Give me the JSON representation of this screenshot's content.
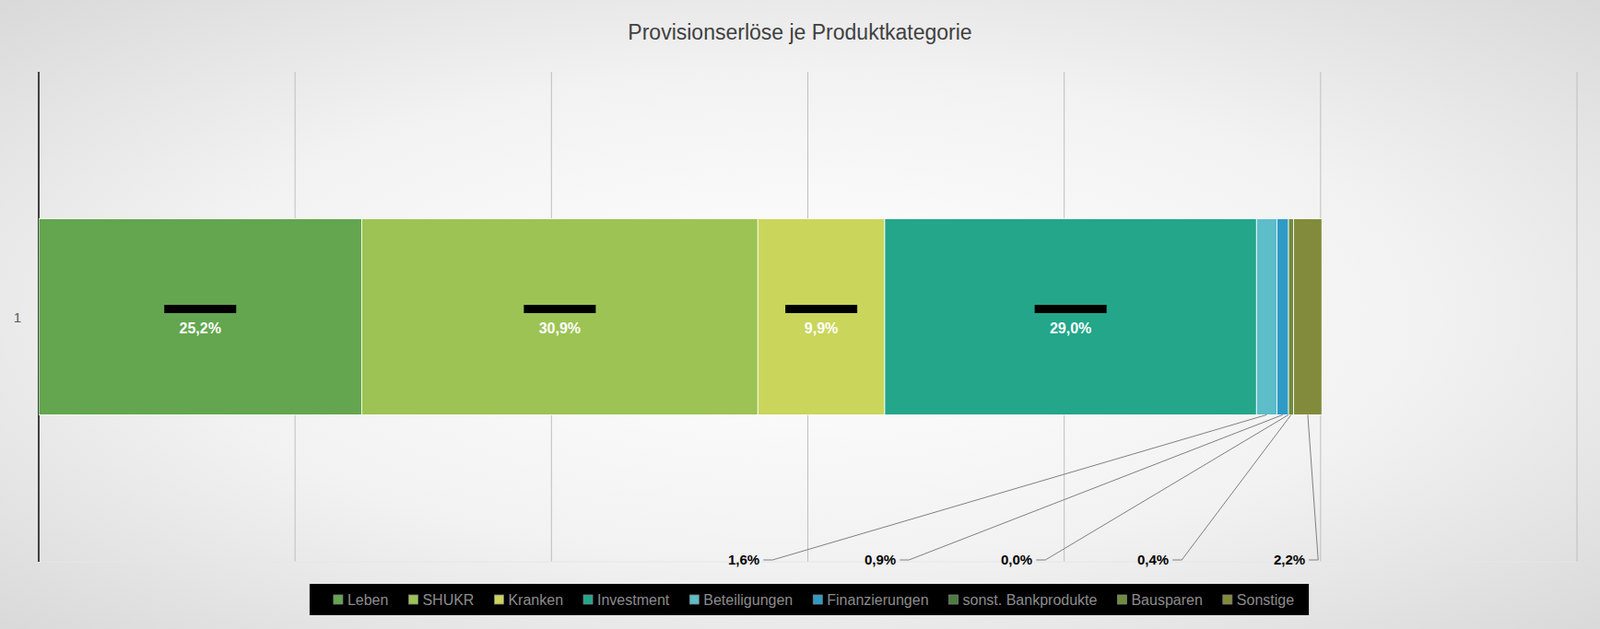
{
  "chart_data": {
    "type": "bar",
    "orientation": "horizontal",
    "stacked": true,
    "title": "Provisionserlöse je Produktkategorie",
    "categories": [
      "1"
    ],
    "xlim": [
      0,
      120
    ],
    "xticks": [
      0,
      20,
      40,
      60,
      80,
      100,
      120
    ],
    "grid": true,
    "tick_labels": "y",
    "data_labels": true,
    "legend": "bottom",
    "series": [
      {
        "name": "Leben",
        "color": "#63a64f",
        "values": [
          25.2
        ],
        "value_labels": [
          "25,2%"
        ]
      },
      {
        "name": "SHUKR",
        "color": "#9cc354",
        "values": [
          30.9
        ],
        "value_labels": [
          "30,9%"
        ]
      },
      {
        "name": "Kranken",
        "color": "#cad55b",
        "values": [
          9.9
        ],
        "value_labels": [
          "9,9%"
        ]
      },
      {
        "name": "Investment",
        "color": "#23a68a",
        "values": [
          29.0
        ],
        "value_labels": [
          "29,0%"
        ]
      },
      {
        "name": "Beteiligungen",
        "color": "#5dbdc9",
        "values": [
          1.6
        ],
        "value_labels": [
          "1,6%"
        ]
      },
      {
        "name": "Finanzierungen",
        "color": "#2f9bc5",
        "values": [
          0.9
        ],
        "value_labels": [
          "0,9%"
        ]
      },
      {
        "name": "sonst. Bankprodukte",
        "color": "#4b7c40",
        "values": [
          0.0
        ],
        "value_labels": [
          "0,0%"
        ]
      },
      {
        "name": "Bausparen",
        "color": "#6f8c3b",
        "values": [
          0.4
        ],
        "value_labels": [
          "0,4%"
        ]
      },
      {
        "name": "Sonstige",
        "color": "#828b3b",
        "values": [
          2.2
        ],
        "value_labels": [
          "2,2%"
        ]
      }
    ]
  }
}
